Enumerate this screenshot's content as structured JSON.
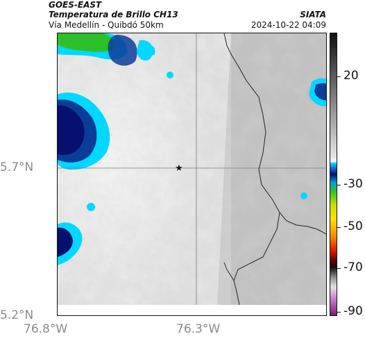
{
  "header": {
    "line1": "GOES-EAST",
    "line2": "Temperatura de Brillo CH13",
    "line3": "Vía Medellín - Quibdó 50km",
    "source": "SIATA",
    "datetime": "2024-10-22 04:09"
  },
  "axes": {
    "lat_labels": [
      "5.7°N",
      "5.2°N"
    ],
    "lon_labels": [
      "76.8°W",
      "76.3°W"
    ]
  },
  "colorbar": {
    "labels": [
      "20",
      "-30",
      "-50",
      "-70",
      "-90"
    ]
  },
  "colors": {
    "deep_blue": "#06106e",
    "cyan": "#00d8ff",
    "green": "#2ec02a",
    "gray_base": "#c9c9c9"
  }
}
